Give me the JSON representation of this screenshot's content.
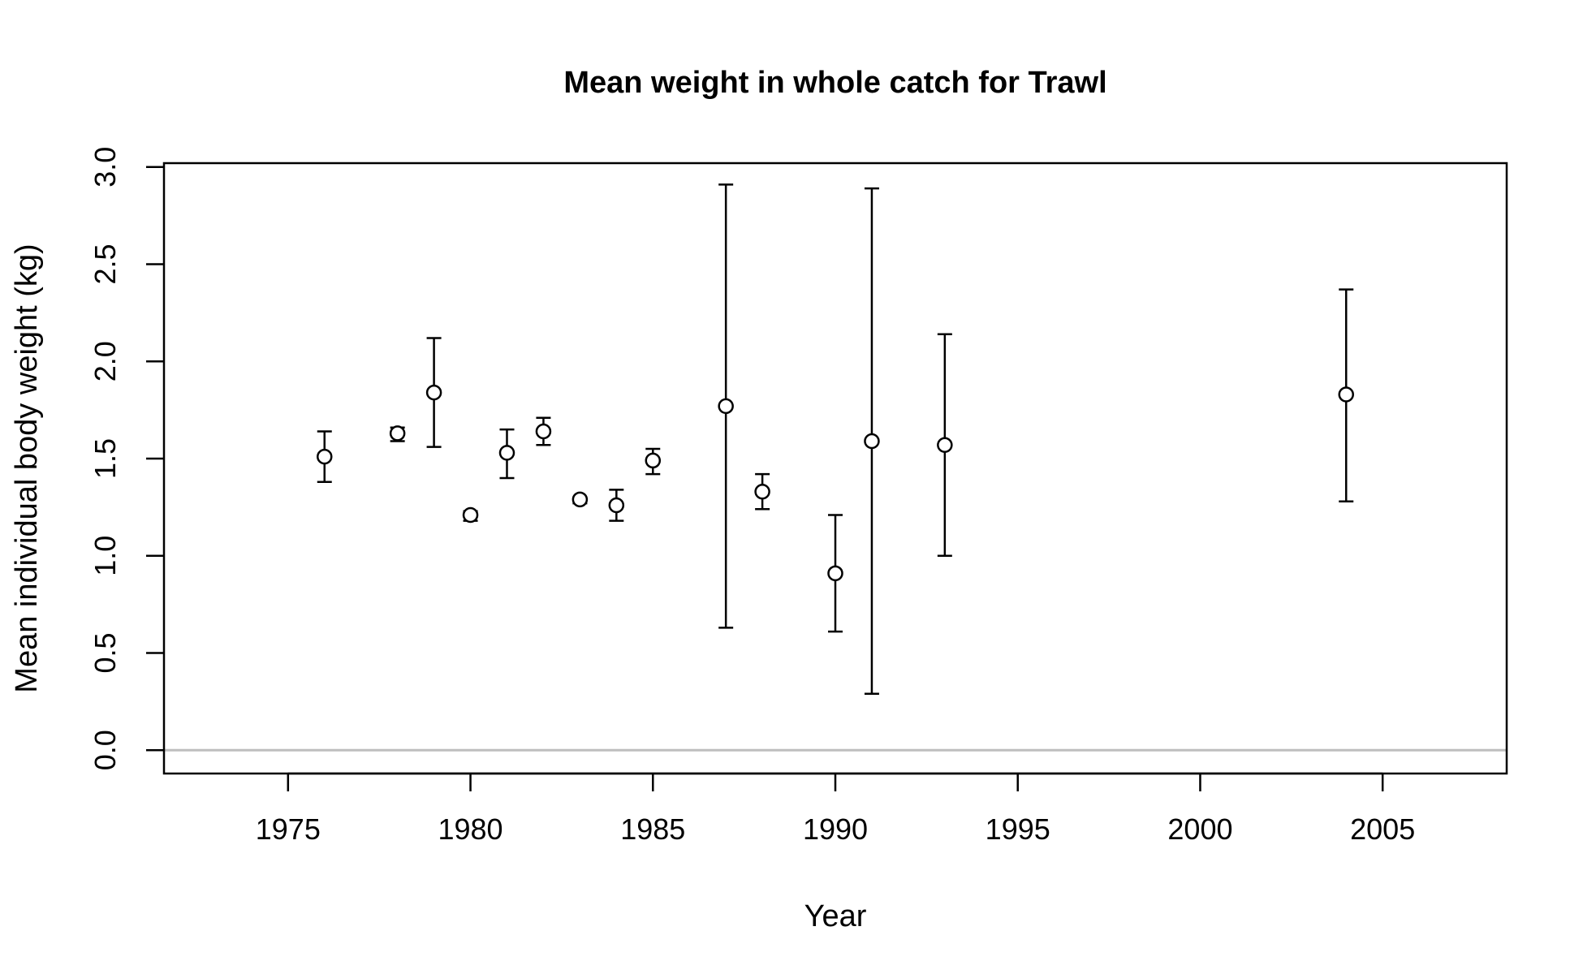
{
  "chart_data": {
    "type": "scatter",
    "title": "Mean weight in whole catch for Trawl",
    "xlabel": "Year",
    "ylabel": "Mean individual body weight (kg)",
    "xlim": [
      1971.6,
      2008.4
    ],
    "ylim": [
      -0.12,
      3.02
    ],
    "xticks": [
      1975,
      1980,
      1985,
      1990,
      1995,
      2000,
      2005
    ],
    "yticks": [
      0.0,
      0.5,
      1.0,
      1.5,
      2.0,
      2.5,
      3.0
    ],
    "xtick_labels": [
      "1975",
      "1980",
      "1985",
      "1990",
      "1995",
      "2000",
      "2005"
    ],
    "ytick_labels": [
      "0.0",
      "0.5",
      "1.0",
      "1.5",
      "2.0",
      "2.5",
      "3.0"
    ],
    "reference_line": {
      "y": 0,
      "color": "#bebebe"
    },
    "grid": false,
    "points": [
      {
        "x": 1976,
        "y": 1.51,
        "lower": 1.38,
        "upper": 1.64
      },
      {
        "x": 1978,
        "y": 1.63,
        "lower": 1.59,
        "upper": 1.66
      },
      {
        "x": 1979,
        "y": 1.84,
        "lower": 1.56,
        "upper": 2.12
      },
      {
        "x": 1980,
        "y": 1.21,
        "lower": 1.18,
        "upper": 1.23
      },
      {
        "x": 1981,
        "y": 1.53,
        "lower": 1.4,
        "upper": 1.65
      },
      {
        "x": 1982,
        "y": 1.64,
        "lower": 1.57,
        "upper": 1.71
      },
      {
        "x": 1983,
        "y": 1.29,
        "lower": 1.27,
        "upper": 1.3
      },
      {
        "x": 1984,
        "y": 1.26,
        "lower": 1.18,
        "upper": 1.34
      },
      {
        "x": 1985,
        "y": 1.49,
        "lower": 1.42,
        "upper": 1.55
      },
      {
        "x": 1987,
        "y": 1.77,
        "lower": 0.63,
        "upper": 2.91
      },
      {
        "x": 1988,
        "y": 1.33,
        "lower": 1.24,
        "upper": 1.42
      },
      {
        "x": 1990,
        "y": 0.91,
        "lower": 0.61,
        "upper": 1.21
      },
      {
        "x": 1991,
        "y": 1.59,
        "lower": 0.29,
        "upper": 2.89
      },
      {
        "x": 1993,
        "y": 1.57,
        "lower": 1.0,
        "upper": 2.14
      },
      {
        "x": 2004,
        "y": 1.83,
        "lower": 1.28,
        "upper": 2.37
      }
    ],
    "colors": {
      "marker": "#000000",
      "marker_fill": "#ffffff",
      "axis": "#000000"
    }
  }
}
